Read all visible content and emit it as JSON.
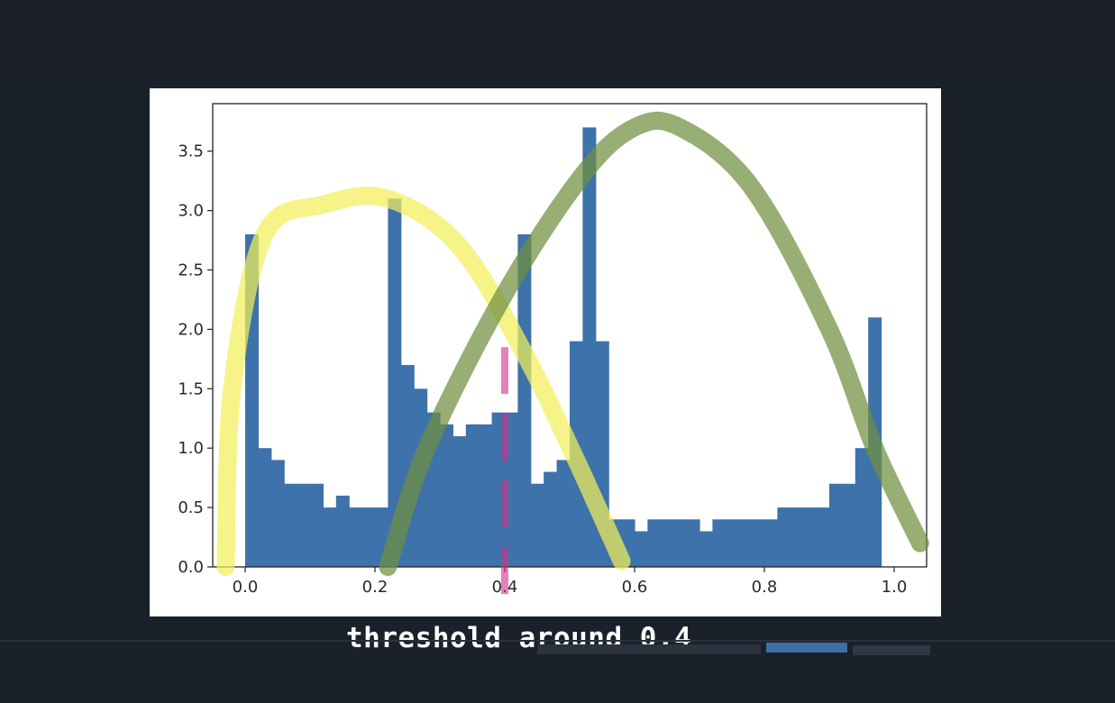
{
  "caption": "threshold around 0.4",
  "colors": {
    "background": "#1b212b",
    "bars": "#3e72aa",
    "yellow_annotation": "#f3ee5a",
    "green_annotation": "#6f8f3f",
    "pink_annotation": "#d42f8c"
  },
  "chart_data": {
    "type": "bar",
    "title": "",
    "xlabel": "",
    "ylabel": "",
    "xlim": [
      -0.05,
      1.05
    ],
    "ylim": [
      0,
      3.9
    ],
    "xticks": [
      0.0,
      0.2,
      0.4,
      0.6,
      0.8,
      1.0
    ],
    "xtick_labels": [
      "0.0",
      "0.2",
      "0.4",
      "0.6",
      "0.8",
      "1.0"
    ],
    "yticks": [
      0.0,
      0.5,
      1.0,
      1.5,
      2.0,
      2.5,
      3.0,
      3.5
    ],
    "ytick_labels": [
      "0.0",
      "0.5",
      "1.0",
      "1.5",
      "2.0",
      "2.5",
      "3.0",
      "3.5"
    ],
    "grid": false,
    "bin_width": 0.02,
    "bin_start": 0.0,
    "values": [
      2.8,
      1.0,
      0.9,
      0.7,
      0.7,
      0.7,
      0.5,
      0.6,
      0.5,
      0.5,
      0.5,
      3.1,
      1.7,
      1.5,
      1.3,
      1.2,
      1.1,
      1.2,
      1.2,
      1.3,
      1.3,
      2.8,
      0.7,
      0.8,
      0.9,
      1.9,
      3.7,
      1.9,
      0.4,
      0.4,
      0.3,
      0.4,
      0.4,
      0.4,
      0.4,
      0.3,
      0.4,
      0.4,
      0.4,
      0.4,
      0.4,
      0.5,
      0.5,
      0.5,
      0.5,
      0.7,
      0.7,
      1.0,
      2.1
    ],
    "annotations": [
      {
        "type": "curve",
        "color": "yellow",
        "points": [
          [
            -0.03,
            0.0
          ],
          [
            -0.02,
            1.5
          ],
          [
            0.03,
            2.8
          ],
          [
            0.12,
            3.05
          ],
          [
            0.22,
            3.1
          ],
          [
            0.33,
            2.7
          ],
          [
            0.43,
            1.8
          ],
          [
            0.51,
            0.9
          ],
          [
            0.58,
            0.05
          ]
        ]
      },
      {
        "type": "curve",
        "color": "green",
        "points": [
          [
            0.22,
            0.0
          ],
          [
            0.28,
            1.0
          ],
          [
            0.4,
            2.3
          ],
          [
            0.52,
            3.3
          ],
          [
            0.6,
            3.7
          ],
          [
            0.67,
            3.7
          ],
          [
            0.78,
            3.2
          ],
          [
            0.9,
            2.0
          ],
          [
            0.97,
            1.0
          ],
          [
            1.04,
            0.2
          ]
        ]
      },
      {
        "type": "vline",
        "color": "pink",
        "x": 0.4,
        "dashed": true
      }
    ]
  }
}
